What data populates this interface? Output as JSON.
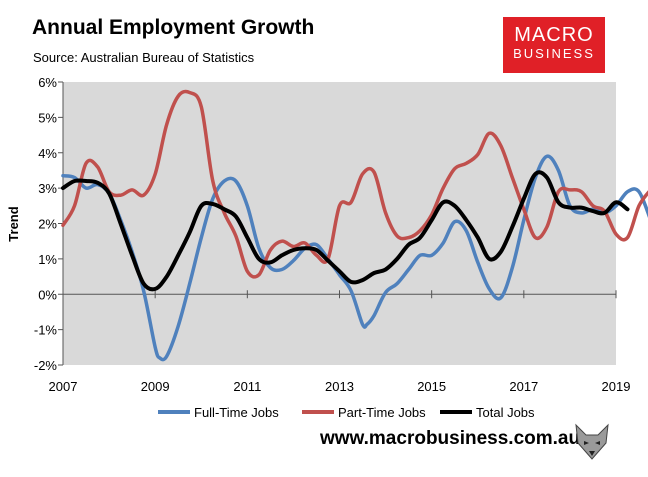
{
  "header": {
    "title": "Annual Employment Growth",
    "subtitle": "Source: Australian Bureau of Statistics"
  },
  "logo": {
    "line1": "MACRO",
    "line2": "BUSINESS",
    "bg_color": "#e02027"
  },
  "footer": {
    "url": "www.macrobusiness.com.au",
    "emblem_icon": "wolf-head-icon"
  },
  "chart_data": {
    "type": "line",
    "title": "Annual Employment Growth",
    "ylabel": "Trend",
    "xlim": [
      2007,
      2019
    ],
    "ylim": [
      -2,
      6
    ],
    "y_ticks": [
      -2,
      -1,
      0,
      1,
      2,
      3,
      4,
      5,
      6
    ],
    "y_tick_labels": [
      "-2%",
      "-1%",
      "0%",
      "1%",
      "2%",
      "3%",
      "4%",
      "5%",
      "6%"
    ],
    "x_ticks": [
      2007,
      2009,
      2011,
      2013,
      2015,
      2017,
      2019
    ],
    "x_tick_labels": [
      "2007",
      "2009",
      "2011",
      "2013",
      "2015",
      "2017",
      "2019"
    ],
    "grid": false,
    "plot_background": "#d9d9d9",
    "legend_position": "bottom",
    "series": [
      {
        "name": "Full-Time Jobs",
        "color": "#4f81bd",
        "points": [
          [
            2007.0,
            3.35
          ],
          [
            2007.25,
            3.3
          ],
          [
            2007.5,
            3.0
          ],
          [
            2007.75,
            3.1
          ],
          [
            2008.0,
            2.85
          ],
          [
            2008.25,
            2.1
          ],
          [
            2008.5,
            1.2
          ],
          [
            2008.75,
            0.1
          ],
          [
            2009.0,
            -1.5
          ],
          [
            2009.1,
            -1.8
          ],
          [
            2009.25,
            -1.75
          ],
          [
            2009.5,
            -0.9
          ],
          [
            2009.75,
            0.3
          ],
          [
            2010.0,
            1.6
          ],
          [
            2010.25,
            2.7
          ],
          [
            2010.5,
            3.2
          ],
          [
            2010.75,
            3.2
          ],
          [
            2011.0,
            2.5
          ],
          [
            2011.25,
            1.3
          ],
          [
            2011.5,
            0.75
          ],
          [
            2011.75,
            0.7
          ],
          [
            2012.0,
            0.95
          ],
          [
            2012.25,
            1.3
          ],
          [
            2012.5,
            1.4
          ],
          [
            2012.75,
            1.0
          ],
          [
            2013.0,
            0.55
          ],
          [
            2013.25,
            0.1
          ],
          [
            2013.5,
            -0.85
          ],
          [
            2013.6,
            -0.85
          ],
          [
            2013.75,
            -0.6
          ],
          [
            2014.0,
            0.05
          ],
          [
            2014.25,
            0.3
          ],
          [
            2014.5,
            0.7
          ],
          [
            2014.75,
            1.1
          ],
          [
            2015.0,
            1.1
          ],
          [
            2015.25,
            1.45
          ],
          [
            2015.5,
            2.05
          ],
          [
            2015.75,
            1.8
          ],
          [
            2016.0,
            0.9
          ],
          [
            2016.25,
            0.15
          ],
          [
            2016.5,
            -0.1
          ],
          [
            2016.75,
            0.75
          ],
          [
            2017.0,
            2.1
          ],
          [
            2017.25,
            3.3
          ],
          [
            2017.5,
            3.9
          ],
          [
            2017.75,
            3.5
          ],
          [
            2018.0,
            2.5
          ],
          [
            2018.25,
            2.3
          ],
          [
            2018.5,
            2.4
          ],
          [
            2018.75,
            2.3
          ],
          [
            2019.0,
            2.5
          ],
          [
            2019.25,
            2.9
          ],
          [
            2019.5,
            2.9
          ],
          [
            2019.75,
            2.1
          ]
        ]
      },
      {
        "name": "Part-Time Jobs",
        "color": "#c0504d",
        "points": [
          [
            2007.0,
            1.95
          ],
          [
            2007.25,
            2.5
          ],
          [
            2007.5,
            3.7
          ],
          [
            2007.75,
            3.6
          ],
          [
            2008.0,
            2.9
          ],
          [
            2008.25,
            2.8
          ],
          [
            2008.5,
            2.95
          ],
          [
            2008.75,
            2.8
          ],
          [
            2009.0,
            3.4
          ],
          [
            2009.25,
            4.8
          ],
          [
            2009.5,
            5.6
          ],
          [
            2009.75,
            5.7
          ],
          [
            2010.0,
            5.3
          ],
          [
            2010.25,
            3.2
          ],
          [
            2010.5,
            2.3
          ],
          [
            2010.75,
            1.65
          ],
          [
            2011.0,
            0.65
          ],
          [
            2011.25,
            0.55
          ],
          [
            2011.5,
            1.25
          ],
          [
            2011.75,
            1.5
          ],
          [
            2012.0,
            1.35
          ],
          [
            2012.25,
            1.45
          ],
          [
            2012.5,
            1.1
          ],
          [
            2012.75,
            1.0
          ],
          [
            2013.0,
            2.5
          ],
          [
            2013.25,
            2.6
          ],
          [
            2013.5,
            3.4
          ],
          [
            2013.75,
            3.45
          ],
          [
            2014.0,
            2.3
          ],
          [
            2014.25,
            1.65
          ],
          [
            2014.5,
            1.6
          ],
          [
            2014.75,
            1.8
          ],
          [
            2015.0,
            2.25
          ],
          [
            2015.25,
            3.0
          ],
          [
            2015.5,
            3.55
          ],
          [
            2015.75,
            3.7
          ],
          [
            2016.0,
            3.95
          ],
          [
            2016.25,
            4.55
          ],
          [
            2016.5,
            4.2
          ],
          [
            2016.75,
            3.3
          ],
          [
            2017.0,
            2.4
          ],
          [
            2017.25,
            1.6
          ],
          [
            2017.5,
            1.9
          ],
          [
            2017.75,
            2.9
          ],
          [
            2018.0,
            2.95
          ],
          [
            2018.25,
            2.9
          ],
          [
            2018.5,
            2.5
          ],
          [
            2018.75,
            2.35
          ],
          [
            2019.0,
            1.7
          ],
          [
            2019.25,
            1.6
          ],
          [
            2019.5,
            2.5
          ],
          [
            2019.75,
            2.95
          ]
        ]
      },
      {
        "name": "Total Jobs",
        "color": "#000000",
        "points": [
          [
            2007.0,
            3.0
          ],
          [
            2007.25,
            3.2
          ],
          [
            2007.5,
            3.2
          ],
          [
            2007.75,
            3.15
          ],
          [
            2008.0,
            2.85
          ],
          [
            2008.25,
            2.0
          ],
          [
            2008.5,
            1.1
          ],
          [
            2008.75,
            0.3
          ],
          [
            2009.0,
            0.15
          ],
          [
            2009.25,
            0.5
          ],
          [
            2009.5,
            1.1
          ],
          [
            2009.75,
            1.75
          ],
          [
            2010.0,
            2.5
          ],
          [
            2010.25,
            2.55
          ],
          [
            2010.5,
            2.4
          ],
          [
            2010.75,
            2.2
          ],
          [
            2011.0,
            1.6
          ],
          [
            2011.25,
            1.0
          ],
          [
            2011.5,
            0.9
          ],
          [
            2011.75,
            1.1
          ],
          [
            2012.0,
            1.25
          ],
          [
            2012.25,
            1.3
          ],
          [
            2012.5,
            1.25
          ],
          [
            2012.75,
            0.95
          ],
          [
            2013.0,
            0.65
          ],
          [
            2013.25,
            0.35
          ],
          [
            2013.5,
            0.4
          ],
          [
            2013.75,
            0.6
          ],
          [
            2014.0,
            0.7
          ],
          [
            2014.25,
            1.0
          ],
          [
            2014.5,
            1.4
          ],
          [
            2014.75,
            1.6
          ],
          [
            2015.0,
            2.1
          ],
          [
            2015.25,
            2.6
          ],
          [
            2015.5,
            2.5
          ],
          [
            2015.75,
            2.1
          ],
          [
            2016.0,
            1.6
          ],
          [
            2016.25,
            1.0
          ],
          [
            2016.5,
            1.2
          ],
          [
            2016.75,
            1.9
          ],
          [
            2017.0,
            2.7
          ],
          [
            2017.25,
            3.4
          ],
          [
            2017.5,
            3.3
          ],
          [
            2017.75,
            2.6
          ],
          [
            2018.0,
            2.45
          ],
          [
            2018.25,
            2.45
          ],
          [
            2018.5,
            2.35
          ],
          [
            2018.75,
            2.3
          ],
          [
            2019.0,
            2.6
          ],
          [
            2019.25,
            2.4
          ]
        ]
      }
    ]
  }
}
